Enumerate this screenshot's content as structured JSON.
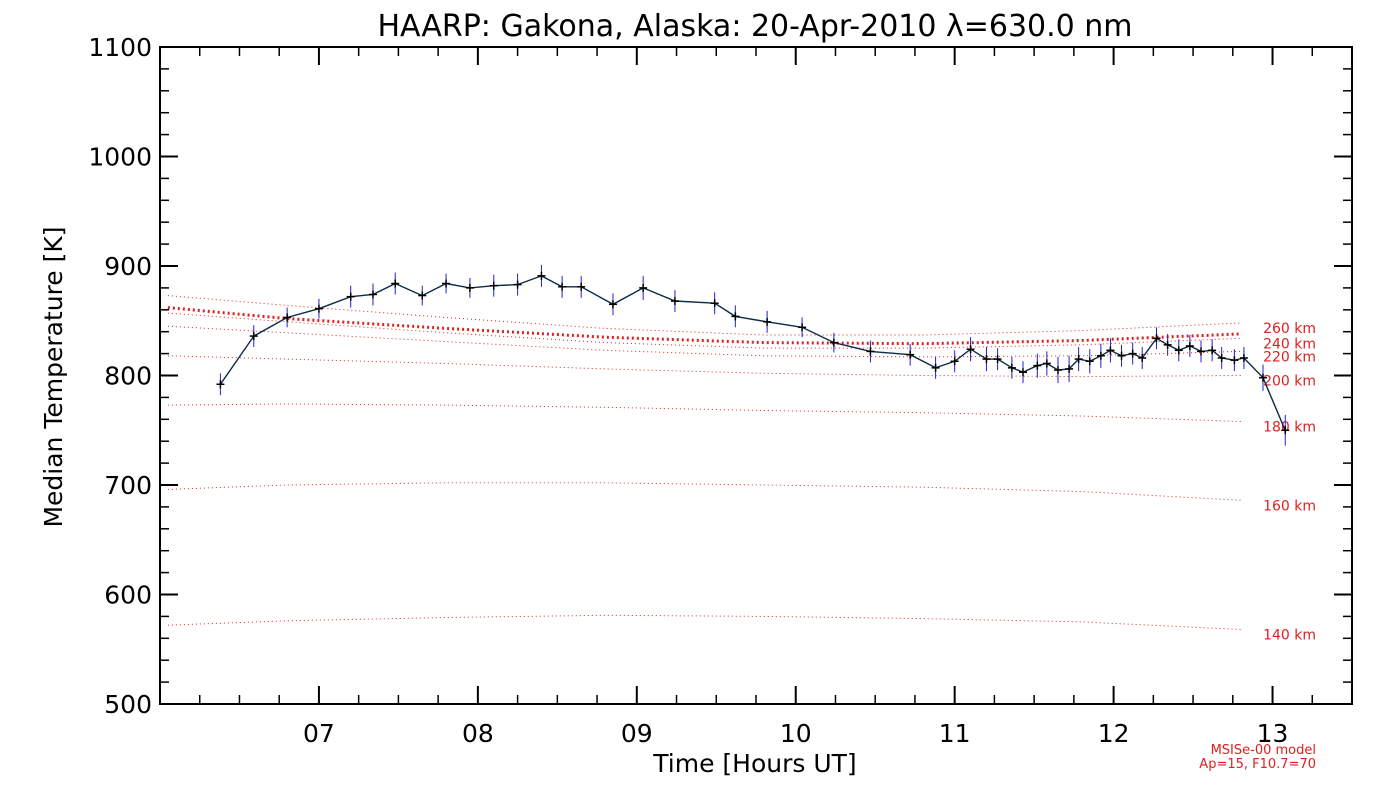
{
  "chart_data": {
    "type": "line",
    "title": "HAARP: Gakona,  Alaska: 20-Apr-2010 λ=630.0 nm",
    "xlabel": "Time [Hours UT]",
    "ylabel": "Median Temperature [K]",
    "xlim": [
      6.0,
      13.5
    ],
    "ylim": [
      500,
      1100
    ],
    "xticks": [
      7,
      8,
      9,
      10,
      11,
      12,
      13
    ],
    "xtick_labels": [
      "07",
      "08",
      "09",
      "10",
      "11",
      "12",
      "13"
    ],
    "yticks": [
      500,
      600,
      700,
      800,
      900,
      1000,
      1100
    ],
    "ytick_labels": [
      "500",
      "600",
      "700",
      "800",
      "900",
      "1000",
      "1100"
    ],
    "colors": {
      "data_line": "#0d2b4a",
      "error_bar": "#2020d0",
      "model": "#e02020",
      "axis": "#000000"
    },
    "measurements": {
      "x": [
        6.38,
        6.59,
        6.8,
        7.0,
        7.2,
        7.34,
        7.48,
        7.65,
        7.8,
        7.95,
        8.1,
        8.25,
        8.4,
        8.53,
        8.65,
        8.85,
        9.04,
        9.24,
        9.49,
        9.62,
        9.82,
        10.04,
        10.24,
        10.47,
        10.72,
        10.88,
        11.0,
        11.1,
        11.2,
        11.27,
        11.36,
        11.43,
        11.52,
        11.58,
        11.65,
        11.72,
        11.78,
        11.85,
        11.92,
        11.98,
        12.05,
        12.12,
        12.18,
        12.27,
        12.34,
        12.41,
        12.48,
        12.55,
        12.62,
        12.68,
        12.76,
        12.82,
        12.94,
        13.08
      ],
      "y": [
        792,
        836,
        853,
        861,
        872,
        874,
        884,
        873,
        884,
        880,
        882,
        883,
        891,
        881,
        881,
        865,
        880,
        868,
        866,
        854,
        849,
        844,
        830,
        822,
        819,
        807,
        813,
        824,
        815,
        815,
        807,
        803,
        809,
        811,
        805,
        806,
        815,
        813,
        818,
        823,
        818,
        820,
        816,
        834,
        828,
        823,
        827,
        822,
        823,
        816,
        814,
        816,
        798,
        750
      ],
      "err": [
        10,
        10,
        9,
        9,
        10,
        10,
        10,
        9,
        9,
        9,
        10,
        10,
        10,
        10,
        10,
        10,
        11,
        10,
        10,
        10,
        10,
        9,
        9,
        10,
        10,
        10,
        10,
        11,
        11,
        10,
        10,
        10,
        11,
        11,
        12,
        12,
        11,
        11,
        11,
        11,
        10,
        10,
        10,
        10,
        10,
        10,
        10,
        10,
        10,
        10,
        10,
        10,
        12,
        14
      ]
    },
    "model": {
      "name": "MSISe-00 model",
      "params": "Ap=15, F10.7=70",
      "highlight": "260 km",
      "x": [
        6.05,
        6.8,
        7.8,
        8.8,
        9.8,
        10.8,
        11.8,
        12.8
      ],
      "curves": [
        {
          "label": "140 km",
          "y": [
            572,
            576,
            579,
            581,
            580,
            578,
            575,
            568
          ]
        },
        {
          "label": "160 km",
          "y": [
            696,
            700,
            702,
            702,
            700,
            698,
            694,
            686
          ]
        },
        {
          "label": "180 km",
          "y": [
            773,
            774,
            773,
            771,
            768,
            766,
            763,
            758
          ]
        },
        {
          "label": "200 km",
          "y": [
            818,
            815,
            811,
            806,
            802,
            800,
            799,
            800
          ]
        },
        {
          "label": "220 km",
          "y": [
            845,
            839,
            831,
            823,
            818,
            817,
            818,
            822
          ]
        },
        {
          "label": "240 km",
          "y": [
            857,
            849,
            839,
            830,
            825,
            825,
            828,
            834
          ]
        },
        {
          "label": "260 km",
          "y": [
            873,
            864,
            853,
            843,
            837,
            837,
            841,
            848
          ]
        }
      ],
      "main": {
        "y": [
          862,
          852,
          843,
          835,
          830,
          829,
          832,
          838
        ]
      }
    }
  }
}
